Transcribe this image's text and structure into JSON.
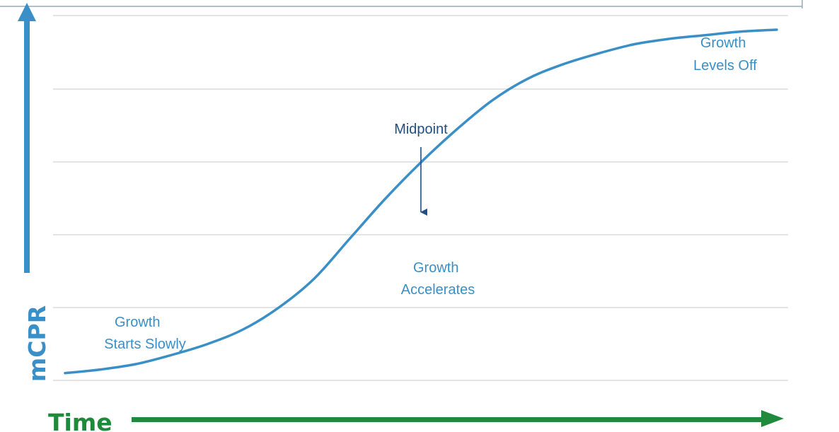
{
  "chart_data": {
    "type": "line",
    "title": "",
    "xlabel": "Time",
    "ylabel": "mCPR",
    "grid": true,
    "colors": {
      "curve": "#3a8fc6",
      "y_axis_arrow": "#3a8fc6",
      "x_axis_arrow": "#1f8a3c",
      "midpoint_annotation": "#1f4f86",
      "gridline": "#d4d4d4"
    },
    "series": [
      {
        "x": [
          0,
          0.05,
          0.1,
          0.15,
          0.2,
          0.25,
          0.3,
          0.35,
          0.4,
          0.45,
          0.5,
          0.55,
          0.6,
          0.65,
          0.7,
          0.75,
          0.8,
          0.85,
          0.9,
          0.95,
          1
        ],
        "values": [
          0.02,
          0.03,
          0.045,
          0.07,
          0.1,
          0.14,
          0.2,
          0.28,
          0.39,
          0.5,
          0.6,
          0.69,
          0.77,
          0.83,
          0.87,
          0.9,
          0.925,
          0.94,
          0.95,
          0.96,
          0.965
        ]
      }
    ],
    "annotations": [
      {
        "id": "starts",
        "lines": [
          "Growth",
          "Starts Slowly"
        ]
      },
      {
        "id": "accelerates",
        "lines": [
          "Growth",
          "Accelerates"
        ]
      },
      {
        "id": "midpoint",
        "lines": [
          "Midpoint"
        ]
      },
      {
        "id": "levels",
        "lines": [
          "Growth",
          "Levels Off"
        ]
      }
    ]
  }
}
